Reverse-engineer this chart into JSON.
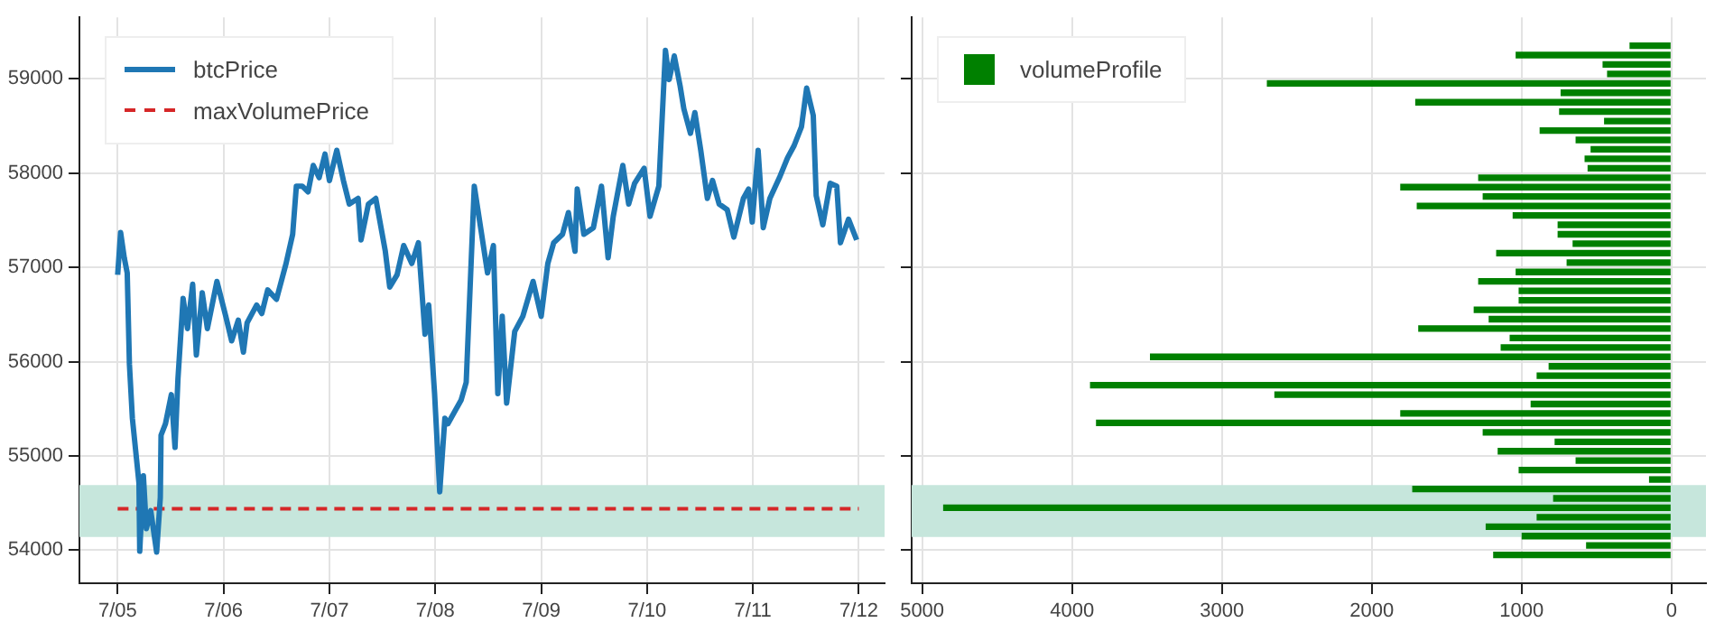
{
  "chart_data": [
    {
      "type": "line",
      "xlim": [
        "--07-04T15:20",
        "--07-12T05:50"
      ],
      "xticks": [
        {
          "value": "--07-05",
          "label": "7/05"
        },
        {
          "value": "--07-06",
          "label": "7/06"
        },
        {
          "value": "--07-07",
          "label": "7/07"
        },
        {
          "value": "--07-08",
          "label": "7/08"
        },
        {
          "value": "--07-09",
          "label": "7/09"
        },
        {
          "value": "--07-10",
          "label": "7/10"
        },
        {
          "value": "--07-11",
          "label": "7/11"
        },
        {
          "value": "--07-12",
          "label": "7/12"
        }
      ],
      "ylim": [
        53650,
        59650
      ],
      "yticks": [
        54000,
        55000,
        56000,
        57000,
        58000,
        59000
      ],
      "grid": true,
      "legend": "top left",
      "bands": [
        {
          "axis": "y",
          "from": 54140,
          "to": 54690,
          "color": "#c6e6dc"
        }
      ],
      "series": [
        {
          "name": "btcPrice",
          "color": "#1f77b4",
          "line_style": "solid",
          "x": [
            "--07-05T00:00",
            "--07-05T00:40",
            "--07-05T01:30",
            "--07-05T02:10",
            "--07-05T02:40",
            "--07-05T03:20",
            "--07-05T04:50",
            "--07-05T05:00",
            "--07-05T05:50",
            "--07-05T06:30",
            "--07-05T07:30",
            "--07-05T08:50",
            "--07-05T09:40",
            "--07-05T09:50",
            "--07-05T10:50",
            "--07-05T12:10",
            "--07-05T13:00",
            "--07-05T13:40",
            "--07-05T14:50",
            "--07-05T15:50",
            "--07-05T17:00",
            "--07-05T17:50",
            "--07-05T19:10",
            "--07-05T20:20",
            "--07-05T22:30",
            "--07-06T00:30",
            "--07-06T01:50",
            "--07-06T03:20",
            "--07-06T04:30",
            "--07-06T05:20",
            "--07-06T07:30",
            "--07-06T08:40",
            "--07-06T10:00",
            "--07-06T12:00",
            "--07-06T14:10",
            "--07-06T15:40",
            "--07-06T16:30",
            "--07-06T17:50",
            "--07-06T19:10",
            "--07-06T20:20",
            "--07-06T21:40",
            "--07-06T23:00",
            "--07-07T00:00",
            "--07-07T01:40",
            "--07-07T03:10",
            "--07-07T04:30",
            "--07-07T06:30",
            "--07-07T07:10",
            "--07-07T08:50",
            "--07-07T10:30",
            "--07-07T12:40",
            "--07-07T13:40",
            "--07-07T15:20",
            "--07-07T16:50",
            "--07-07T18:40",
            "--07-07T20:10",
            "--07-07T21:40",
            "--07-07T22:30",
            "--07-07T23:50",
            "--07-08T01:00",
            "--07-08T02:10",
            "--07-08T02:50",
            "--07-08T05:50",
            "--07-08T07:00",
            "--07-08T08:50",
            "--07-08T10:30",
            "--07-08T11:50",
            "--07-08T13:10",
            "--07-08T14:10",
            "--07-08T15:10",
            "--07-08T16:10",
            "--07-08T18:00",
            "--07-08T19:50",
            "--07-08T22:10",
            "--07-09T00:00",
            "--07-09T01:30",
            "--07-09T02:50",
            "--07-09T04:50",
            "--07-09T06:10",
            "--07-09T07:40",
            "--07-09T08:10",
            "--07-09T09:40",
            "--07-09T11:50",
            "--07-09T13:40",
            "--07-09T15:10",
            "--07-09T16:20",
            "--07-09T18:30",
            "--07-09T19:50",
            "--07-09T21:10",
            "--07-09T23:20",
            "--07-10T00:40",
            "--07-10T02:40",
            "--07-10T04:10",
            "--07-10T05:00",
            "--07-10T06:10",
            "--07-10T07:30",
            "--07-10T08:20",
            "--07-10T09:50",
            "--07-10T10:50",
            "--07-10T12:10",
            "--07-10T13:40",
            "--07-10T14:50",
            "--07-10T16:20",
            "--07-10T18:10",
            "--07-10T19:40",
            "--07-10T21:50",
            "--07-10T23:00",
            "--07-10T23:50",
            "--07-11T01:10",
            "--07-11T02:20",
            "--07-11T03:50",
            "--07-11T06:00",
            "--07-11T07:50",
            "--07-11T09:20",
            "--07-11T11:00",
            "--07-11T12:10",
            "--07-11T13:40",
            "--07-11T14:20",
            "--07-11T15:50",
            "--07-11T17:30",
            "--07-11T19:00",
            "--07-11T19:50",
            "--07-11T21:40",
            "--07-11T23:30"
          ],
          "values": [
            56920,
            57370,
            57100,
            56940,
            55970,
            55400,
            54710,
            53990,
            54790,
            54230,
            54420,
            53980,
            54560,
            55220,
            55340,
            55650,
            55090,
            55820,
            56670,
            56350,
            56820,
            56070,
            56730,
            56350,
            56850,
            56480,
            56220,
            56440,
            56100,
            56410,
            56600,
            56510,
            56760,
            56660,
            57040,
            57350,
            57860,
            57860,
            57800,
            58080,
            57950,
            58200,
            57920,
            58240,
            57920,
            57670,
            57730,
            57290,
            57670,
            57730,
            57170,
            56790,
            56920,
            57230,
            57040,
            57260,
            56290,
            56600,
            55660,
            54620,
            55400,
            55340,
            55590,
            55780,
            57860,
            57350,
            56940,
            57230,
            55660,
            56480,
            55560,
            56320,
            56480,
            56850,
            56480,
            57040,
            57260,
            57350,
            57580,
            57170,
            57830,
            57350,
            57420,
            57860,
            57100,
            57540,
            58080,
            57670,
            57890,
            58050,
            57540,
            57860,
            59300,
            58990,
            59240,
            58920,
            58680,
            58420,
            58640,
            58240,
            57730,
            57920,
            57670,
            57610,
            57320,
            57730,
            57830,
            57480,
            58240,
            57420,
            57730,
            57950,
            58160,
            58290,
            58490,
            58900,
            58610,
            57760,
            57450,
            57890,
            57860,
            57260,
            57510,
            57290
          ]
        },
        {
          "name": "maxVolumePrice",
          "type": "line",
          "color": "#d62728",
          "line_style": "dashed",
          "x": [
            "--07-05",
            "--07-12"
          ],
          "values": [
            54440,
            54440
          ]
        }
      ]
    },
    {
      "type": "histogram",
      "orientation": "horizontal",
      "xlim": [
        5070,
        -230
      ],
      "xticks": [
        5000,
        4000,
        3000,
        2000,
        1000,
        0
      ],
      "ylim": [
        53650,
        59650
      ],
      "yticks": [
        54000,
        55000,
        56000,
        57000,
        58000,
        59000
      ],
      "tick_labels": "x",
      "grid": true,
      "legend": "top left",
      "bands": [
        {
          "axis": "y",
          "from": 54140,
          "to": 54690,
          "color": "#c6e6dc"
        }
      ],
      "bins": [
        53900,
        54000,
        54100,
        54200,
        54300,
        54400,
        54500,
        54600,
        54700,
        54800,
        54900,
        55000,
        55100,
        55200,
        55300,
        55400,
        55500,
        55600,
        55700,
        55800,
        55900,
        56000,
        56100,
        56200,
        56300,
        56400,
        56500,
        56600,
        56700,
        56800,
        56900,
        57000,
        57100,
        57200,
        57300,
        57400,
        57500,
        57600,
        57700,
        57800,
        57900,
        58000,
        58100,
        58200,
        58300,
        58400,
        58500,
        58600,
        58700,
        58800,
        58900,
        59000,
        59100,
        59200,
        59300,
        59400
      ],
      "series": [
        {
          "name": "volumeProfile",
          "color": "#008000",
          "values": [
            1190,
            570,
            1000,
            1240,
            900,
            4860,
            790,
            1730,
            150,
            1020,
            640,
            1160,
            780,
            1260,
            3840,
            1810,
            940,
            2650,
            3880,
            900,
            820,
            3480,
            1140,
            1080,
            1690,
            1220,
            1320,
            1020,
            1020,
            1290,
            1040,
            700,
            1170,
            660,
            760,
            760,
            1060,
            1700,
            1260,
            1810,
            1290,
            560,
            580,
            540,
            640,
            880,
            450,
            750,
            1710,
            740,
            2700,
            430,
            460,
            1040,
            280
          ]
        }
      ]
    }
  ]
}
